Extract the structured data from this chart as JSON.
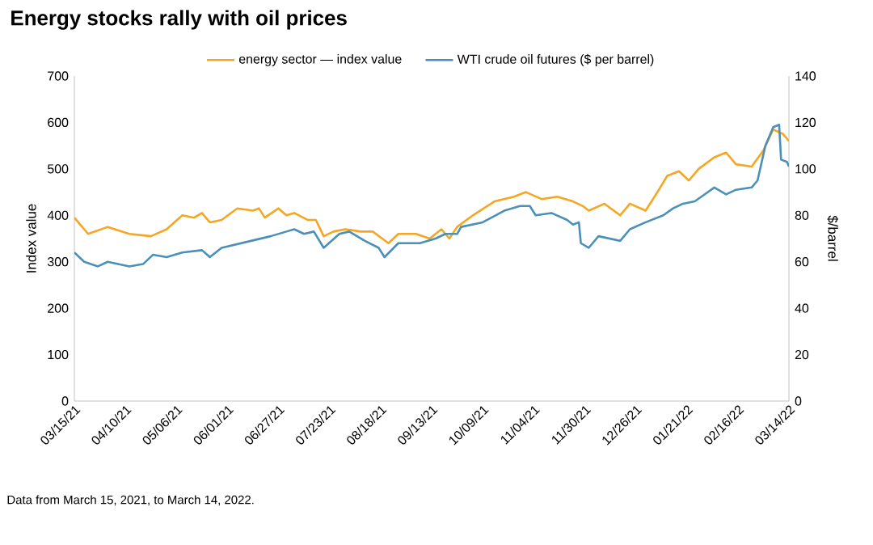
{
  "chart_data": {
    "type": "line",
    "title": "Energy stocks rally with oil prices",
    "ylabel": "Index value",
    "y2label": "$/barrel",
    "annotations": [
      "Data from March 15, 2021, to March 14, 2022."
    ],
    "legend": "top",
    "xlim": [
      "2021-03-15",
      "2022-03-14"
    ],
    "xticks": [
      {
        "value": "2021-03-15",
        "label": "03/15/21"
      },
      {
        "value": "2021-04-10",
        "label": "04/10/21"
      },
      {
        "value": "2021-05-06",
        "label": "05/06/21"
      },
      {
        "value": "2021-06-01",
        "label": "06/01/21"
      },
      {
        "value": "2021-06-27",
        "label": "06/27/21"
      },
      {
        "value": "2021-07-23",
        "label": "07/23/21"
      },
      {
        "value": "2021-08-18",
        "label": "08/18/21"
      },
      {
        "value": "2021-09-13",
        "label": "09/13/21"
      },
      {
        "value": "2021-10-09",
        "label": "10/09/21"
      },
      {
        "value": "2021-11-04",
        "label": "11/04/21"
      },
      {
        "value": "2021-11-30",
        "label": "11/30/21"
      },
      {
        "value": "2021-12-26",
        "label": "12/26/21"
      },
      {
        "value": "2022-01-21",
        "label": "01/21/22"
      },
      {
        "value": "2022-02-16",
        "label": "02/16/22"
      },
      {
        "value": "2022-03-14",
        "label": "03/14/22"
      }
    ],
    "ylim": [
      0,
      700
    ],
    "yticks": [
      0,
      100,
      200,
      300,
      400,
      500,
      600,
      700
    ],
    "y2lim": [
      0,
      140
    ],
    "y2ticks": [
      0,
      20,
      40,
      60,
      80,
      100,
      120,
      140
    ],
    "series": [
      {
        "name": "energy sector — index value",
        "color": "#f5a623",
        "x": [
          "2021-03-15",
          "2021-03-22",
          "2021-04-01",
          "2021-04-12",
          "2021-04-23",
          "2021-05-01",
          "2021-05-09",
          "2021-05-15",
          "2021-05-19",
          "2021-05-23",
          "2021-05-29",
          "2021-06-06",
          "2021-06-14",
          "2021-06-17",
          "2021-06-20",
          "2021-06-27",
          "2021-07-01",
          "2021-07-05",
          "2021-07-12",
          "2021-07-16",
          "2021-07-20",
          "2021-07-25",
          "2021-07-31",
          "2021-08-08",
          "2021-08-14",
          "2021-08-22",
          "2021-08-27",
          "2021-09-05",
          "2021-09-12",
          "2021-09-18",
          "2021-09-22",
          "2021-09-26",
          "2021-10-04",
          "2021-10-15",
          "2021-10-25",
          "2021-10-31",
          "2021-11-08",
          "2021-11-16",
          "2021-11-24",
          "2021-11-29",
          "2021-12-02",
          "2021-12-10",
          "2021-12-18",
          "2021-12-23",
          "2021-12-31",
          "2022-01-06",
          "2022-01-11",
          "2022-01-17",
          "2022-01-22",
          "2022-01-27",
          "2022-02-04",
          "2022-02-10",
          "2022-02-15",
          "2022-02-23",
          "2022-03-01",
          "2022-03-06",
          "2022-03-11",
          "2022-03-14"
        ],
        "values": [
          395,
          360,
          375,
          360,
          355,
          370,
          400,
          395,
          405,
          385,
          390,
          415,
          410,
          415,
          395,
          415,
          400,
          405,
          390,
          390,
          355,
          365,
          370,
          365,
          365,
          340,
          360,
          360,
          350,
          370,
          350,
          375,
          400,
          430,
          440,
          450,
          435,
          440,
          430,
          420,
          410,
          425,
          400,
          425,
          410,
          450,
          485,
          495,
          475,
          500,
          525,
          535,
          510,
          505,
          540,
          585,
          575,
          560
        ]
      },
      {
        "name": "WTI crude oil futures ($ per barrel)",
        "color": "#4a90b8",
        "axis": "y2",
        "x": [
          "2021-03-15",
          "2021-03-20",
          "2021-03-27",
          "2021-04-01",
          "2021-04-12",
          "2021-04-19",
          "2021-04-24",
          "2021-05-01",
          "2021-05-09",
          "2021-05-19",
          "2021-05-23",
          "2021-05-29",
          "2021-06-13",
          "2021-06-23",
          "2021-07-01",
          "2021-07-05",
          "2021-07-10",
          "2021-07-15",
          "2021-07-20",
          "2021-07-28",
          "2021-08-02",
          "2021-08-10",
          "2021-08-17",
          "2021-08-20",
          "2021-08-27",
          "2021-09-07",
          "2021-09-15",
          "2021-09-20",
          "2021-09-26",
          "2021-09-28",
          "2021-10-09",
          "2021-10-20",
          "2021-10-28",
          "2021-11-02",
          "2021-11-05",
          "2021-11-13",
          "2021-11-21",
          "2021-11-24",
          "2021-11-27",
          "2021-11-28",
          "2021-12-02",
          "2021-12-07",
          "2021-12-18",
          "2021-12-23",
          "2021-12-31",
          "2022-01-09",
          "2022-01-14",
          "2022-01-19",
          "2022-01-25",
          "2022-01-30",
          "2022-02-04",
          "2022-02-10",
          "2022-02-15",
          "2022-02-23",
          "2022-02-26",
          "2022-03-02",
          "2022-03-06",
          "2022-03-09",
          "2022-03-10",
          "2022-03-13",
          "2022-03-14"
        ],
        "values": [
          64,
          60,
          58,
          60,
          58,
          59,
          63,
          62,
          64,
          65,
          62,
          66,
          69,
          71,
          73,
          74,
          72,
          73,
          66,
          72,
          73,
          69,
          66,
          62,
          68,
          68,
          70,
          72,
          72,
          75,
          77,
          82,
          84,
          84,
          80,
          81,
          78,
          76,
          77,
          68,
          66,
          71,
          69,
          74,
          77,
          80,
          83,
          85,
          86,
          89,
          92,
          89,
          91,
          92,
          95,
          110,
          118,
          119,
          104,
          103,
          101
        ]
      }
    ]
  }
}
